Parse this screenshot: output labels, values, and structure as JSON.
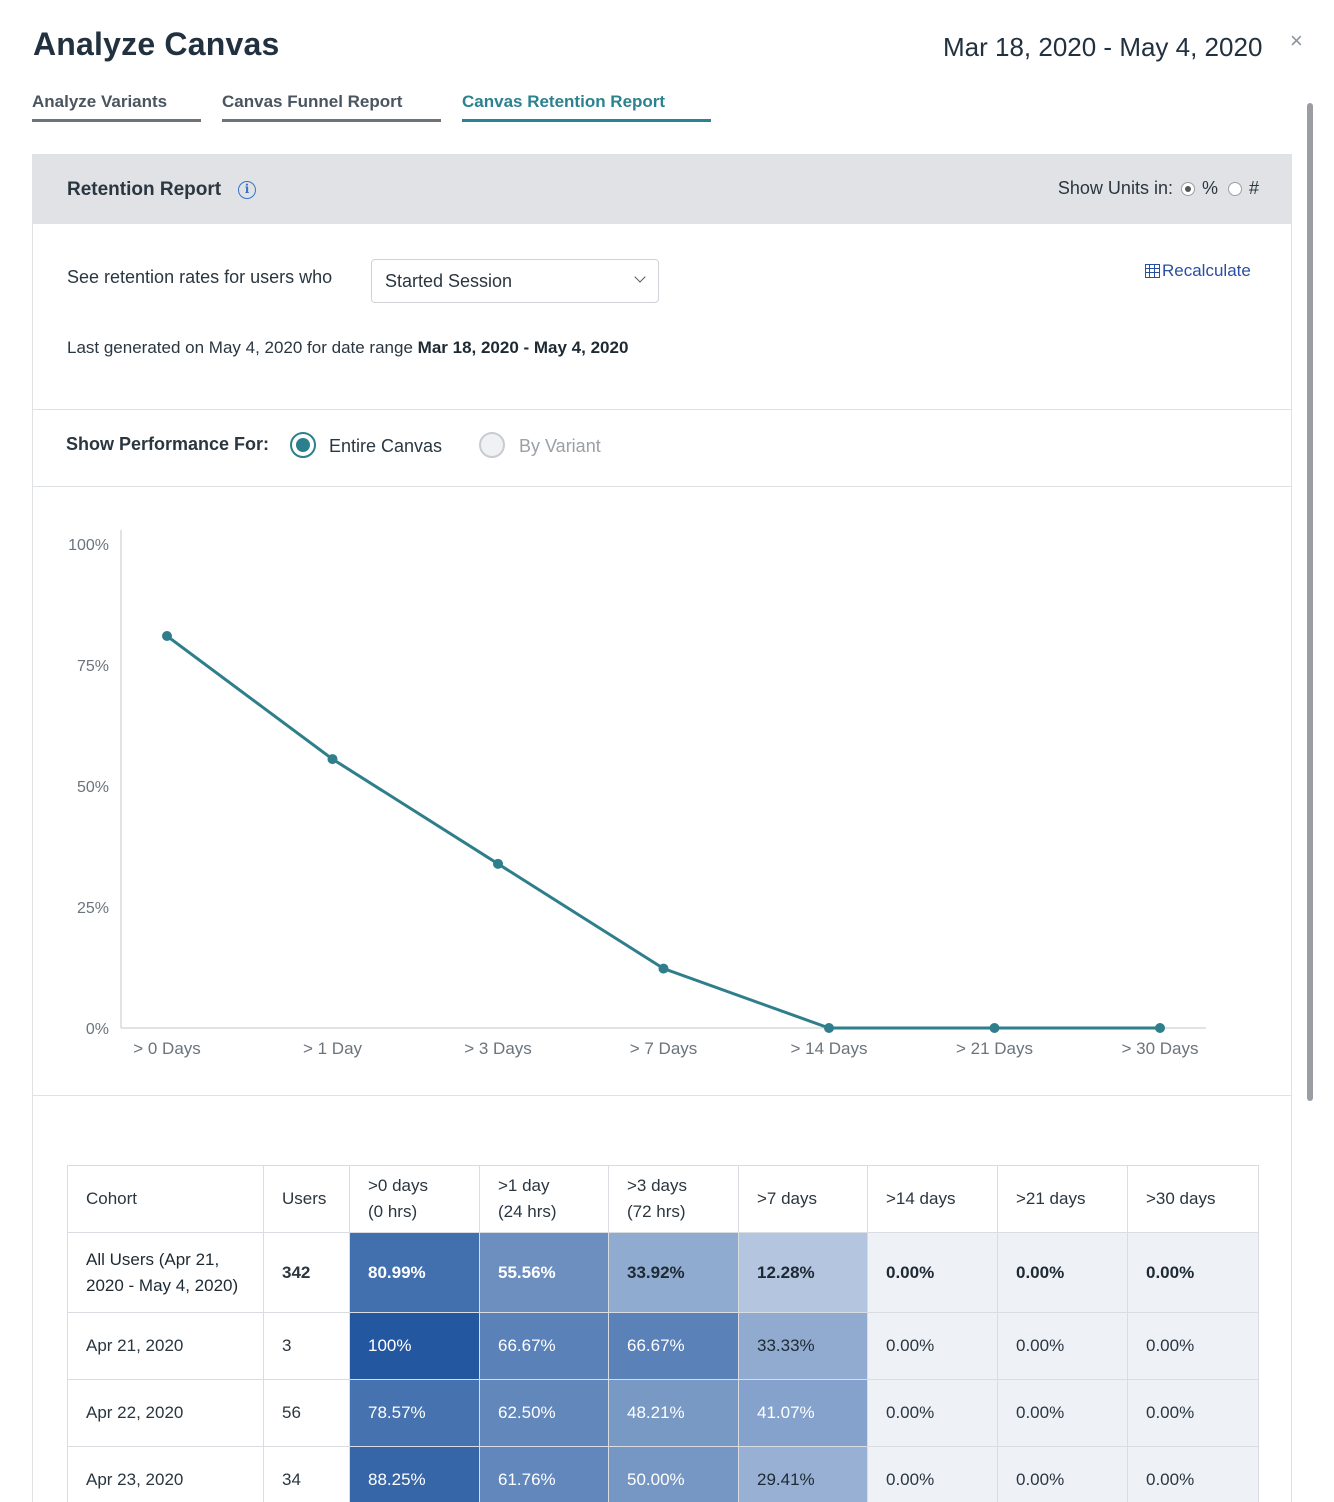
{
  "header": {
    "title": "Analyze Canvas",
    "date_range": "Mar 18, 2020 - May 4, 2020",
    "close_glyph": "×"
  },
  "tabs": [
    {
      "label": "Analyze Variants",
      "active": false
    },
    {
      "label": "Canvas Funnel Report",
      "active": false
    },
    {
      "label": "Canvas Retention Report",
      "active": true
    }
  ],
  "panel": {
    "title": "Retention Report",
    "info_icon": "info-icon",
    "units": {
      "label": "Show Units in:",
      "options": [
        "%",
        "#"
      ],
      "selected": "%"
    }
  },
  "filters": {
    "retention_label": "See retention rates for users who",
    "event_select": "Started Session",
    "recalculate": "Recalculate",
    "last_generated_prefix": "Last generated on May 4, 2020 for date range",
    "last_generated_range": "Mar 18, 2020 - May 4, 2020"
  },
  "performance": {
    "label": "Show Performance For:",
    "options": [
      "Entire Canvas",
      "By Variant"
    ],
    "selected": "Entire Canvas"
  },
  "colors": {
    "accent": "#2b7f8e",
    "line": "#2e7e8c",
    "heat_max": "#2357a0"
  },
  "chart_data": {
    "type": "line",
    "categories": [
      "> 0 Days",
      "> 1 Day",
      "> 3 Days",
      "> 7 Days",
      "> 14 Days",
      "> 21 Days",
      "> 30 Days"
    ],
    "series": [
      {
        "values": [
          80.99,
          55.56,
          33.92,
          12.28,
          0,
          0,
          0
        ]
      }
    ],
    "yticks": [
      "0%",
      "25%",
      "50%",
      "75%",
      "100%"
    ],
    "ylim": [
      0,
      100
    ],
    "grid": false,
    "legend": "none"
  },
  "table": {
    "headers": [
      {
        "line1": "Cohort",
        "line2": ""
      },
      {
        "line1": "Users",
        "line2": ""
      },
      {
        "line1": ">0 days",
        "line2": "(0 hrs)"
      },
      {
        "line1": ">1 day",
        "line2": "(24 hrs)"
      },
      {
        "line1": ">3 days",
        "line2": "(72 hrs)"
      },
      {
        "line1": ">7 days",
        "line2": ""
      },
      {
        "line1": ">14 days",
        "line2": ""
      },
      {
        "line1": ">21 days",
        "line2": ""
      },
      {
        "line1": ">30 days",
        "line2": ""
      }
    ],
    "rows": [
      {
        "cohort": "All Users (Apr 21, 2020 - May 4, 2020)",
        "users": "342",
        "values": [
          "80.99%",
          "55.56%",
          "33.92%",
          "12.28%",
          "0.00%",
          "0.00%",
          "0.00%"
        ],
        "fractions": [
          0.8099,
          0.5556,
          0.3392,
          0.1228,
          0,
          0,
          0
        ]
      },
      {
        "cohort": "Apr 21, 2020",
        "users": "3",
        "values": [
          "100%",
          "66.67%",
          "66.67%",
          "33.33%",
          "0.00%",
          "0.00%",
          "0.00%"
        ],
        "fractions": [
          1.0,
          0.6667,
          0.6667,
          0.3333,
          0,
          0,
          0
        ]
      },
      {
        "cohort": "Apr 22, 2020",
        "users": "56",
        "values": [
          "78.57%",
          "62.50%",
          "48.21%",
          "41.07%",
          "0.00%",
          "0.00%",
          "0.00%"
        ],
        "fractions": [
          0.7857,
          0.625,
          0.4821,
          0.4107,
          0,
          0,
          0
        ]
      },
      {
        "cohort": "Apr 23, 2020",
        "users": "34",
        "values": [
          "88.25%",
          "61.76%",
          "50.00%",
          "29.41%",
          "0.00%",
          "0.00%",
          "0.00%"
        ],
        "fractions": [
          0.8825,
          0.6176,
          0.5,
          0.2941,
          0,
          0,
          0
        ]
      }
    ]
  }
}
